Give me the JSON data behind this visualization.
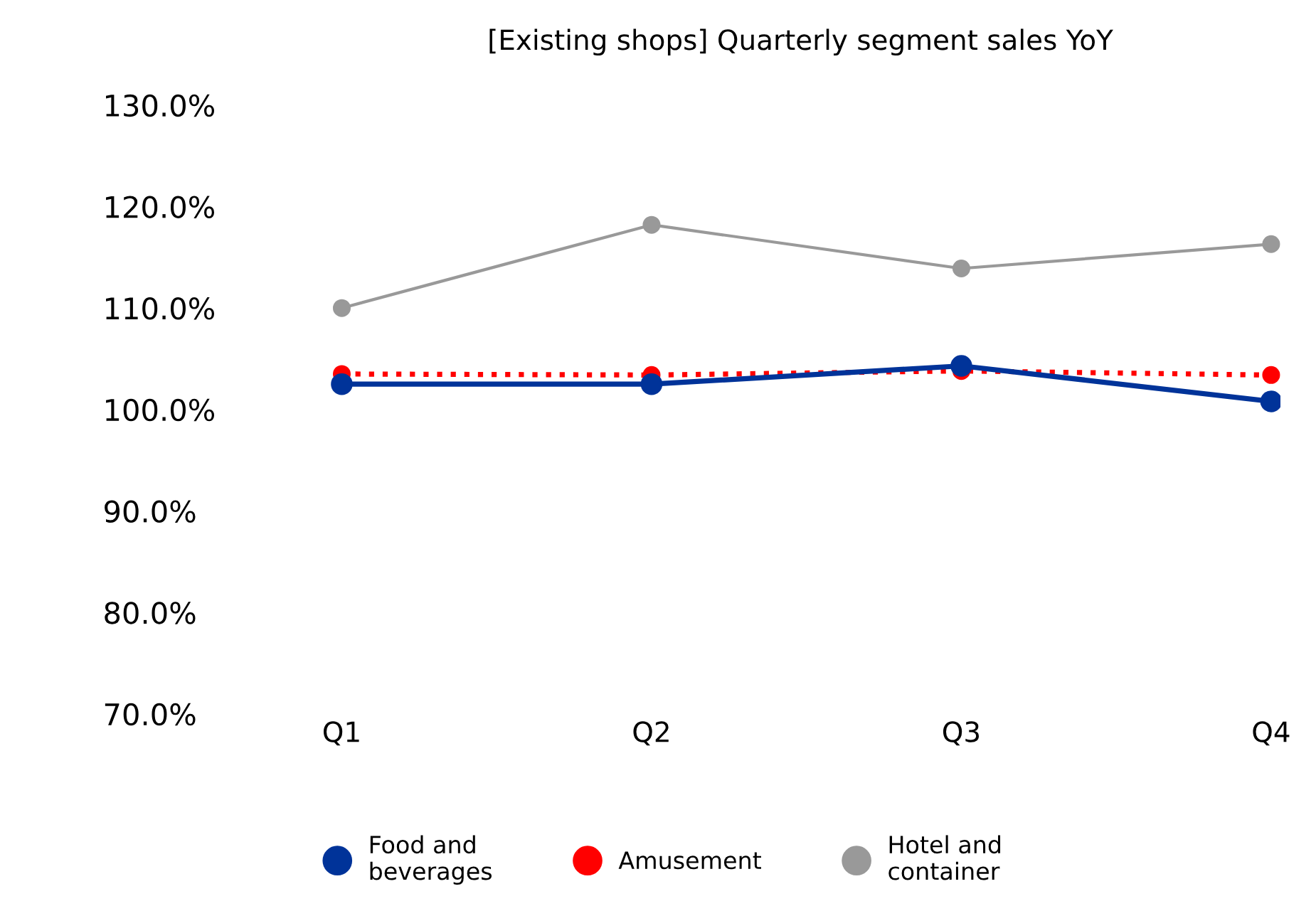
{
  "chart_data": {
    "type": "line",
    "title": "[Existing shops] Quarterly segment sales YoY",
    "categories": [
      "Q1",
      "Q2",
      "Q3",
      "Q4"
    ],
    "series": [
      {
        "name": "Food and\nbeverages",
        "color": "#003399",
        "values": [
          102.5,
          102.5,
          104.3,
          100.8
        ],
        "line_style": "solid"
      },
      {
        "name": "Amusement",
        "color": "#ff0000",
        "values": [
          103.5,
          103.4,
          103.8,
          103.4
        ],
        "line_style": "dotted"
      },
      {
        "name": "Hotel and\ncontainer",
        "color": "#999999",
        "values": [
          110.0,
          118.2,
          113.9,
          116.3
        ],
        "line_style": "solid"
      }
    ],
    "ylim": [
      70,
      130
    ],
    "yticks": [
      {
        "value": 70,
        "label": "70.0%"
      },
      {
        "value": 80,
        "label": "80.0%"
      },
      {
        "value": 90,
        "label": "90.0%"
      },
      {
        "value": 100,
        "label": "100.0%"
      },
      {
        "value": 110,
        "label": "110.0%"
      },
      {
        "value": 120,
        "label": "120.0%"
      },
      {
        "value": 130,
        "label": "130.0%"
      }
    ],
    "marker": "circle",
    "grid": false,
    "legend": "bottom"
  }
}
